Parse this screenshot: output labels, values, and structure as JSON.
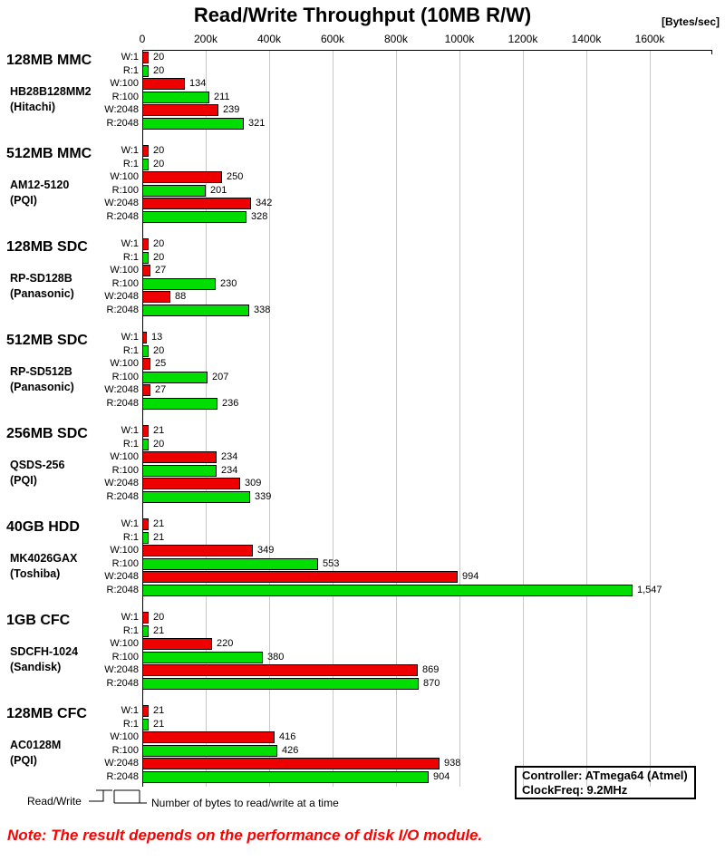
{
  "title": "Read/Write Throughput (10MB R/W)",
  "unit_label": "[Bytes/sec]",
  "note": "Note: The result depends on the performance of disk I/O module.",
  "info_box": {
    "line1": "Controller: ATmega64 (Atmel)",
    "line2": "ClockFreq: 9.2MHz"
  },
  "legend": {
    "read_write": "Read/Write",
    "bytes_at_a_time": "Number of bytes to read/write at a time"
  },
  "colors": {
    "write_bar": "#ee0000",
    "read_bar": "#00dd00",
    "grid": "#c9c9c9",
    "note": "#ff0000"
  },
  "chart_data": {
    "type": "bar",
    "orientation": "horizontal",
    "title": "Read/Write Throughput (10MB R/W)",
    "unit": "Bytes/sec",
    "x_ticks": [
      "0",
      "200k",
      "400k",
      "600k",
      "800k",
      "1000k",
      "1200k",
      "1400k",
      "1600k"
    ],
    "x_tick_step": 200000,
    "xlim": [
      0,
      1794000
    ],
    "grid": true,
    "values_unit": "kBytes/sec",
    "row_labels": [
      "W:1",
      "R:1",
      "W:100",
      "R:100",
      "W:2048",
      "R:2048"
    ],
    "series_colors": {
      "write": "#ee0000",
      "read": "#00dd00"
    },
    "groups": [
      {
        "name": "128MB MMC",
        "model": "HB28B128MM2",
        "brand": "(Hitachi)",
        "values_k": [
          20,
          20,
          134,
          211,
          239,
          321
        ],
        "value_labels": [
          "20",
          "20",
          "134",
          "211",
          "239",
          "321"
        ]
      },
      {
        "name": "512MB MMC",
        "model": "AM12-5120",
        "brand": "(PQI)",
        "values_k": [
          20,
          20,
          250,
          201,
          342,
          328
        ],
        "value_labels": [
          "20",
          "20",
          "250",
          "201",
          "342",
          "328"
        ]
      },
      {
        "name": "128MB SDC",
        "model": "RP-SD128B",
        "brand": "(Panasonic)",
        "values_k": [
          20,
          20,
          27,
          230,
          88,
          338
        ],
        "value_labels": [
          "20",
          "20",
          "27",
          "230",
          "88",
          "338"
        ]
      },
      {
        "name": "512MB SDC",
        "model": "RP-SD512B",
        "brand": "(Panasonic)",
        "values_k": [
          13,
          20,
          25,
          207,
          27,
          236
        ],
        "value_labels": [
          "13",
          "20",
          "25",
          "207",
          "27",
          "236"
        ]
      },
      {
        "name": "256MB SDC",
        "model": "QSDS-256",
        "brand": "(PQI)",
        "values_k": [
          21,
          20,
          234,
          234,
          309,
          339
        ],
        "value_labels": [
          "21",
          "20",
          "234",
          "234",
          "309",
          "339"
        ]
      },
      {
        "name": "40GB HDD",
        "model": "MK4026GAX",
        "brand": "(Toshiba)",
        "values_k": [
          21,
          21,
          349,
          553,
          994,
          1547
        ],
        "value_labels": [
          "21",
          "21",
          "349",
          "553",
          "994",
          "1,547"
        ]
      },
      {
        "name": "1GB CFC",
        "model": "SDCFH-1024",
        "brand": "(Sandisk)",
        "values_k": [
          20,
          21,
          220,
          380,
          869,
          870
        ],
        "value_labels": [
          "20",
          "21",
          "220",
          "380",
          "869",
          "870"
        ]
      },
      {
        "name": "128MB CFC",
        "model": "AC0128M",
        "brand": "(PQI)",
        "values_k": [
          21,
          21,
          416,
          426,
          938,
          904
        ],
        "value_labels": [
          "21",
          "21",
          "416",
          "426",
          "938",
          "904"
        ]
      }
    ]
  }
}
